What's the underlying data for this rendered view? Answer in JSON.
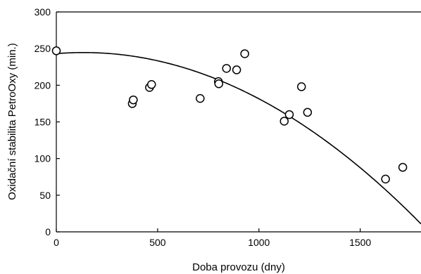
{
  "chart_data": {
    "type": "scatter",
    "title": "",
    "xlabel": "Doba provozu (dny)",
    "ylabel": "Oxidační stabilita PetroOxy (min.)",
    "xlim": [
      0,
      1800
    ],
    "ylim": [
      0,
      300
    ],
    "xticks": [
      0,
      500,
      1000,
      1500
    ],
    "yticks": [
      0,
      50,
      100,
      150,
      200,
      250,
      300
    ],
    "grid": false,
    "legend": "none",
    "marker": "open-circle",
    "series": [
      {
        "values": [
          {
            "x": 0,
            "y": 247
          },
          {
            "x": 375,
            "y": 175
          },
          {
            "x": 380,
            "y": 180
          },
          {
            "x": 460,
            "y": 197
          },
          {
            "x": 470,
            "y": 201
          },
          {
            "x": 710,
            "y": 182
          },
          {
            "x": 800,
            "y": 205
          },
          {
            "x": 802,
            "y": 202
          },
          {
            "x": 840,
            "y": 223
          },
          {
            "x": 890,
            "y": 221
          },
          {
            "x": 930,
            "y": 243
          },
          {
            "x": 1125,
            "y": 151
          },
          {
            "x": 1150,
            "y": 160
          },
          {
            "x": 1210,
            "y": 198
          },
          {
            "x": 1240,
            "y": 163
          },
          {
            "x": 1625,
            "y": 72
          },
          {
            "x": 1710,
            "y": 88
          }
        ]
      }
    ],
    "trendline": {
      "type": "quadratic",
      "coefficients": [
        243.1,
        0.0227,
        -8.43e-05
      ]
    }
  }
}
